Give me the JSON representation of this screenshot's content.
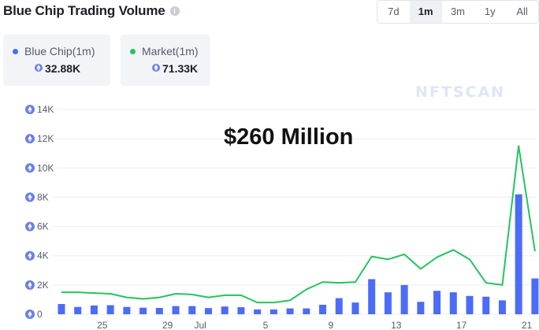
{
  "header": {
    "title": "Blue Chip Trading Volume",
    "info_icon": "info-icon",
    "ranges": [
      "7d",
      "1m",
      "3m",
      "1y",
      "All"
    ],
    "active_range": "1m"
  },
  "stats": {
    "bluechip": {
      "label": "Blue Chip(1m)",
      "value": "32.88K",
      "color": "#4a6cf7"
    },
    "market": {
      "label": "Market(1m)",
      "value": "71.33K",
      "color": "#22c55e"
    }
  },
  "watermark": "NFTSCAN",
  "annotation": "$260 Million",
  "colors": {
    "bar": "#4a6cf7",
    "line": "#22c55e",
    "grid": "#eceef2",
    "eth_icon": "#6c7fe6"
  },
  "chart_data": {
    "type": "bar",
    "currency_icon": "eth-icon",
    "x_tick_labels": [
      "25",
      "29",
      "Jul",
      "5",
      "9",
      "13",
      "17",
      "21"
    ],
    "ylim": [
      0,
      14000
    ],
    "y_ticks": [
      "0",
      "2K",
      "4K",
      "6K",
      "8K",
      "10K",
      "12K",
      "14K"
    ],
    "grid": true,
    "series": [
      {
        "name": "Blue Chip",
        "kind": "bar",
        "values": [
          700,
          500,
          600,
          620,
          500,
          450,
          430,
          560,
          560,
          420,
          530,
          480,
          330,
          330,
          400,
          400,
          650,
          1100,
          800,
          2400,
          1500,
          2000,
          850,
          1600,
          1500,
          1250,
          1200,
          950,
          8200,
          2450
        ]
      },
      {
        "name": "Market",
        "kind": "line",
        "values": [
          1500,
          1500,
          1450,
          1400,
          1150,
          1050,
          1150,
          1400,
          1350,
          1150,
          1300,
          1300,
          800,
          800,
          950,
          1700,
          2200,
          2150,
          2200,
          3950,
          3750,
          4100,
          3100,
          3900,
          4400,
          3750,
          2150,
          2000,
          11500,
          4300
        ]
      }
    ]
  }
}
